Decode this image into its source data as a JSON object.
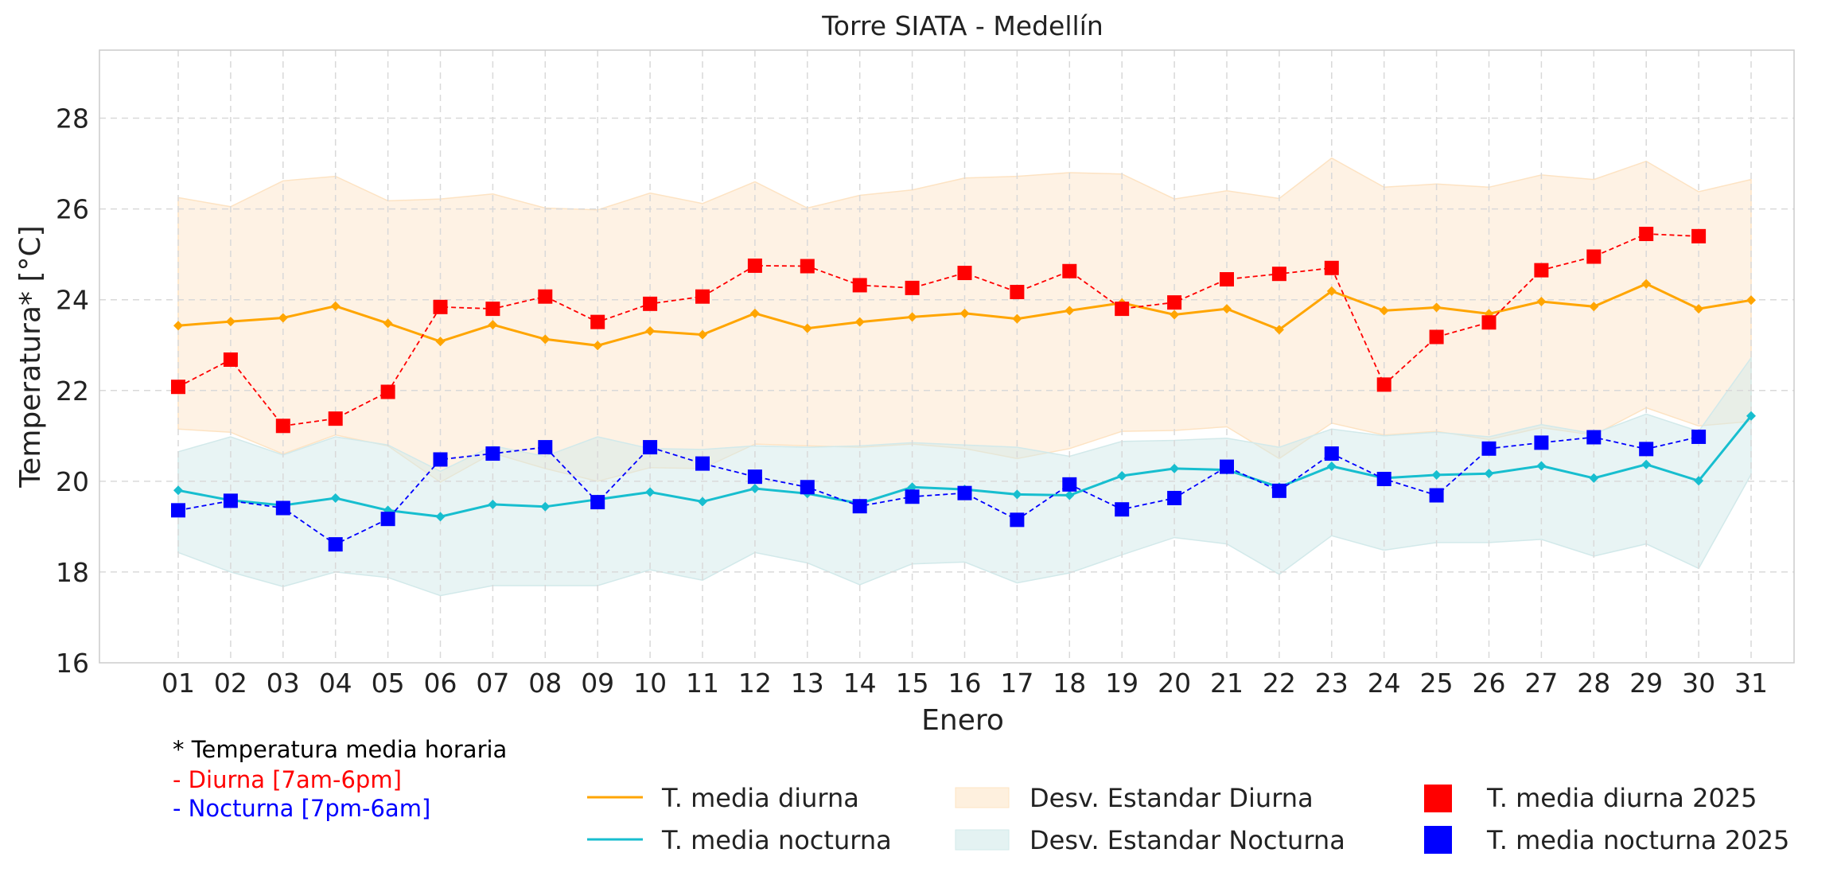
{
  "chart_data": {
    "type": "line",
    "title": "Torre SIATA - Medellín",
    "xlabel": "Enero",
    "ylabel": "Temperatura* [°C]",
    "ylim": [
      16,
      29.5
    ],
    "yticks": [
      16,
      18,
      20,
      22,
      24,
      26,
      28
    ],
    "grid": true,
    "categories": [
      "01",
      "02",
      "03",
      "04",
      "05",
      "06",
      "07",
      "08",
      "09",
      "10",
      "11",
      "12",
      "13",
      "14",
      "15",
      "16",
      "17",
      "18",
      "19",
      "20",
      "21",
      "22",
      "23",
      "24",
      "25",
      "26",
      "27",
      "28",
      "29",
      "30",
      "31"
    ],
    "series": [
      {
        "name": "T. media diurna",
        "kind": "line",
        "color": "#ffa500",
        "values": [
          23.43,
          23.52,
          23.6,
          23.86,
          23.48,
          23.08,
          23.45,
          23.13,
          22.99,
          23.31,
          23.23,
          23.7,
          23.37,
          23.51,
          23.62,
          23.7,
          23.58,
          23.76,
          23.93,
          23.67,
          23.8,
          23.34,
          24.19,
          23.76,
          23.83,
          23.69,
          23.96,
          23.85,
          24.35,
          23.8,
          23.99
        ]
      },
      {
        "name": "T. media nocturna",
        "kind": "line",
        "color": "#17becf",
        "values": [
          19.8,
          19.58,
          19.47,
          19.63,
          19.36,
          19.22,
          19.49,
          19.44,
          19.6,
          19.76,
          19.55,
          19.84,
          19.73,
          19.51,
          19.87,
          19.82,
          19.71,
          19.69,
          20.12,
          20.28,
          20.25,
          19.87,
          20.33,
          20.07,
          20.14,
          20.17,
          20.34,
          20.07,
          20.37,
          20.01,
          21.44
        ]
      },
      {
        "name": "Desv. Estandar Diurna",
        "kind": "band",
        "color": "#fde3c3",
        "upper": [
          26.25,
          26.05,
          26.62,
          26.72,
          26.18,
          26.22,
          26.33,
          26.02,
          25.98,
          26.35,
          26.12,
          26.6,
          26.02,
          26.3,
          26.42,
          26.68,
          26.72,
          26.8,
          26.77,
          26.22,
          26.4,
          26.23,
          27.12,
          26.48,
          26.55,
          26.48,
          26.75,
          26.65,
          27.05,
          26.38,
          26.65
        ],
        "lower": [
          21.15,
          21.08,
          20.6,
          21.02,
          20.78,
          19.98,
          20.62,
          20.28,
          20.0,
          20.3,
          20.28,
          20.82,
          20.78,
          20.75,
          20.82,
          20.72,
          20.5,
          20.72,
          21.1,
          21.12,
          21.2,
          20.5,
          21.28,
          21.02,
          21.1,
          20.92,
          21.18,
          21.02,
          21.62,
          21.22,
          21.32
        ]
      },
      {
        "name": "Desv. Estandar Nocturna",
        "kind": "band",
        "color": "#d2e9ea",
        "upper": [
          20.65,
          20.98,
          20.58,
          20.98,
          20.8,
          20.22,
          20.78,
          20.55,
          20.98,
          20.72,
          20.7,
          20.78,
          20.75,
          20.78,
          20.85,
          20.8,
          20.75,
          20.55,
          20.88,
          20.9,
          20.95,
          20.75,
          21.15,
          21.0,
          21.08,
          20.98,
          21.25,
          21.05,
          21.48,
          21.1,
          22.72
        ],
        "lower": [
          18.43,
          18.0,
          17.68,
          18.0,
          17.88,
          17.48,
          17.7,
          17.7,
          17.7,
          18.05,
          17.82,
          18.43,
          18.2,
          17.72,
          18.18,
          18.22,
          17.76,
          17.98,
          18.38,
          18.76,
          18.62,
          17.95,
          18.8,
          18.48,
          18.65,
          18.65,
          18.72,
          18.35,
          18.62,
          18.08,
          20.15
        ]
      },
      {
        "name": "T. media diurna 2025",
        "kind": "markers",
        "color": "#ff0000",
        "values": [
          22.08,
          22.68,
          21.22,
          21.38,
          21.97,
          23.84,
          23.8,
          24.07,
          23.51,
          23.91,
          24.07,
          24.75,
          24.74,
          24.32,
          24.26,
          24.59,
          24.17,
          24.63,
          23.8,
          23.94,
          24.45,
          24.57,
          24.7,
          22.13,
          23.18,
          23.5,
          24.65,
          24.95,
          25.45,
          25.4,
          null
        ]
      },
      {
        "name": "T. media nocturna 2025",
        "kind": "markers",
        "color": "#0000ff",
        "values": [
          19.36,
          19.57,
          19.41,
          18.61,
          19.17,
          20.48,
          20.61,
          20.75,
          19.54,
          20.75,
          20.39,
          20.1,
          19.87,
          19.45,
          19.66,
          19.74,
          19.15,
          19.93,
          19.38,
          19.63,
          20.32,
          19.79,
          20.61,
          20.05,
          19.69,
          20.72,
          20.85,
          20.97,
          20.71,
          20.98,
          null
        ]
      }
    ],
    "legend_position": "bottom",
    "annotations": [
      {
        "text": "* Temperatura media horaria",
        "color": "#000000"
      },
      {
        "text": "- Diurna [7am-6pm]",
        "color": "#ff0000"
      },
      {
        "text": "- Nocturna [7pm-6am]",
        "color": "#0000ff"
      }
    ]
  }
}
